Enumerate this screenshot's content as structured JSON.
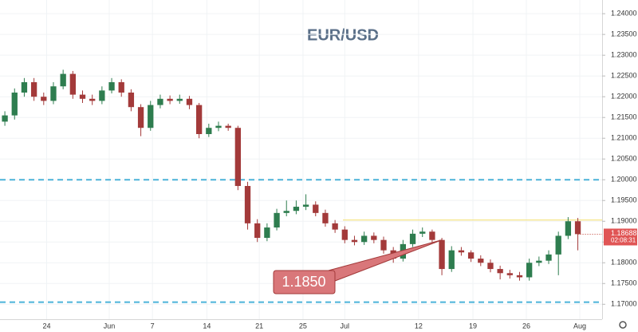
{
  "chart_data": {
    "type": "candlestick",
    "title": "EUR/USD",
    "x": [
      0,
      1,
      2,
      3,
      4,
      5,
      6,
      7,
      8,
      9,
      10,
      11,
      12,
      13,
      14,
      15,
      16,
      17,
      18,
      19,
      20,
      21,
      22,
      23,
      24,
      25,
      26,
      27,
      28,
      29,
      30,
      31,
      32,
      33,
      34,
      35,
      36,
      37,
      38,
      39,
      40,
      41,
      42,
      43,
      44,
      45,
      46,
      47,
      48,
      49,
      50,
      51,
      52,
      53,
      54,
      55,
      56,
      57,
      58,
      59
    ],
    "open": [
      1.214,
      1.2155,
      1.221,
      1.2235,
      1.22,
      1.219,
      1.2225,
      1.2255,
      1.2205,
      1.2195,
      1.219,
      1.2215,
      1.2235,
      1.221,
      1.2175,
      1.2125,
      1.218,
      1.2195,
      1.219,
      1.2195,
      1.218,
      1.211,
      1.2125,
      1.213,
      1.2125,
      1.1985,
      1.1895,
      1.186,
      1.1885,
      1.192,
      1.1925,
      1.1935,
      1.194,
      1.192,
      1.1895,
      1.188,
      1.1855,
      1.185,
      1.1865,
      1.1855,
      1.183,
      1.181,
      1.1845,
      1.187,
      1.1875,
      1.1855,
      1.1785,
      1.183,
      1.1825,
      1.181,
      1.18,
      1.1785,
      1.1775,
      1.177,
      1.1765,
      1.18,
      1.1805,
      1.182,
      1.1865,
      1.19
    ],
    "high": [
      1.2165,
      1.222,
      1.2245,
      1.2245,
      1.221,
      1.2235,
      1.2265,
      1.2262,
      1.2215,
      1.2205,
      1.2225,
      1.2245,
      1.2242,
      1.2218,
      1.2182,
      1.219,
      1.2205,
      1.2203,
      1.2205,
      1.2202,
      1.2185,
      1.2135,
      1.214,
      1.2135,
      1.213,
      1.1995,
      1.1905,
      1.1895,
      1.193,
      1.195,
      1.195,
      1.1965,
      1.1948,
      1.1928,
      1.1903,
      1.1888,
      1.1865,
      1.1875,
      1.1873,
      1.1863,
      1.1838,
      1.1855,
      1.188,
      1.1885,
      1.188,
      1.186,
      1.184,
      1.1838,
      1.183,
      1.1818,
      1.1808,
      1.1793,
      1.1783,
      1.1778,
      1.181,
      1.1815,
      1.183,
      1.1875,
      1.191,
      1.1908
    ],
    "low": [
      1.213,
      1.2145,
      1.22,
      1.219,
      1.218,
      1.2182,
      1.2218,
      1.2195,
      1.2185,
      1.218,
      1.2182,
      1.2208,
      1.22,
      1.2165,
      1.2105,
      1.2118,
      1.2172,
      1.2182,
      1.2183,
      1.217,
      1.21,
      1.2103,
      1.2117,
      1.2118,
      1.1975,
      1.188,
      1.185,
      1.1852,
      1.1878,
      1.1912,
      1.1917,
      1.1927,
      1.1912,
      1.1887,
      1.1872,
      1.1847,
      1.1842,
      1.1843,
      1.1847,
      1.1822,
      1.18,
      1.1803,
      1.1838,
      1.1862,
      1.1847,
      1.177,
      1.1778,
      1.1817,
      1.1802,
      1.1792,
      1.1777,
      1.176,
      1.1762,
      1.1757,
      1.1757,
      1.1792,
      1.1797,
      1.177,
      1.1857,
      1.183
    ],
    "close": [
      1.2155,
      1.221,
      1.2235,
      1.22,
      1.219,
      1.2225,
      1.2255,
      1.2205,
      1.2195,
      1.219,
      1.2215,
      1.2235,
      1.221,
      1.2175,
      1.2125,
      1.218,
      1.2195,
      1.219,
      1.2195,
      1.218,
      1.211,
      1.2125,
      1.213,
      1.2125,
      1.1985,
      1.1895,
      1.186,
      1.1885,
      1.192,
      1.1925,
      1.1935,
      1.194,
      1.192,
      1.1895,
      1.188,
      1.1855,
      1.185,
      1.1865,
      1.1855,
      1.183,
      1.181,
      1.1845,
      1.187,
      1.1875,
      1.1855,
      1.1785,
      1.183,
      1.1825,
      1.181,
      1.18,
      1.1785,
      1.1775,
      1.177,
      1.1765,
      1.18,
      1.1805,
      1.182,
      1.1865,
      1.19,
      1.1869
    ],
    "up_color": "#2e7d4f",
    "down_color": "#a33a3a",
    "xlim": [
      -0.5,
      61.5
    ],
    "xticks": [
      {
        "value": 4.3,
        "label": "24"
      },
      {
        "value": 10.75,
        "label": "Jun"
      },
      {
        "value": 15.2,
        "label": "7"
      },
      {
        "value": 20.8,
        "label": "14"
      },
      {
        "value": 26.2,
        "label": "21"
      },
      {
        "value": 30.7,
        "label": "25"
      },
      {
        "value": 35,
        "label": "Jul"
      },
      {
        "value": 42.6,
        "label": "12"
      },
      {
        "value": 48.2,
        "label": "19"
      },
      {
        "value": 53.7,
        "label": "26"
      },
      {
        "value": 59.2,
        "label": "Aug"
      }
    ],
    "ylim": [
      1.1664,
      1.2433
    ],
    "yticks": [
      {
        "value": 1.17,
        "label": "1.17000"
      },
      {
        "value": 1.175,
        "label": "1.17500"
      },
      {
        "value": 1.18,
        "label": "1.18000"
      },
      {
        "value": 1.185,
        "label": "1.18500"
      },
      {
        "value": 1.19,
        "label": "1.19000"
      },
      {
        "value": 1.195,
        "label": "1.19500"
      },
      {
        "value": 1.2,
        "label": "1.20000"
      },
      {
        "value": 1.205,
        "label": "1.20500"
      },
      {
        "value": 1.21,
        "label": "1.21000"
      },
      {
        "value": 1.215,
        "label": "1.21500"
      },
      {
        "value": 1.22,
        "label": "1.22000"
      },
      {
        "value": 1.225,
        "label": "1.22500"
      },
      {
        "value": 1.23,
        "label": "1.23000"
      },
      {
        "value": 1.235,
        "label": "1.23500"
      },
      {
        "value": 1.24,
        "label": "1.24000"
      }
    ],
    "grid": true,
    "levels": [
      1.2,
      1.1705
    ],
    "level_color": "#4bb3d9",
    "resistance": 1.1903,
    "resistance_color": "#f5e27a",
    "annotation": {
      "label": "1.1850"
    },
    "last_price": 1.18688,
    "countdown": "02:08:31"
  }
}
